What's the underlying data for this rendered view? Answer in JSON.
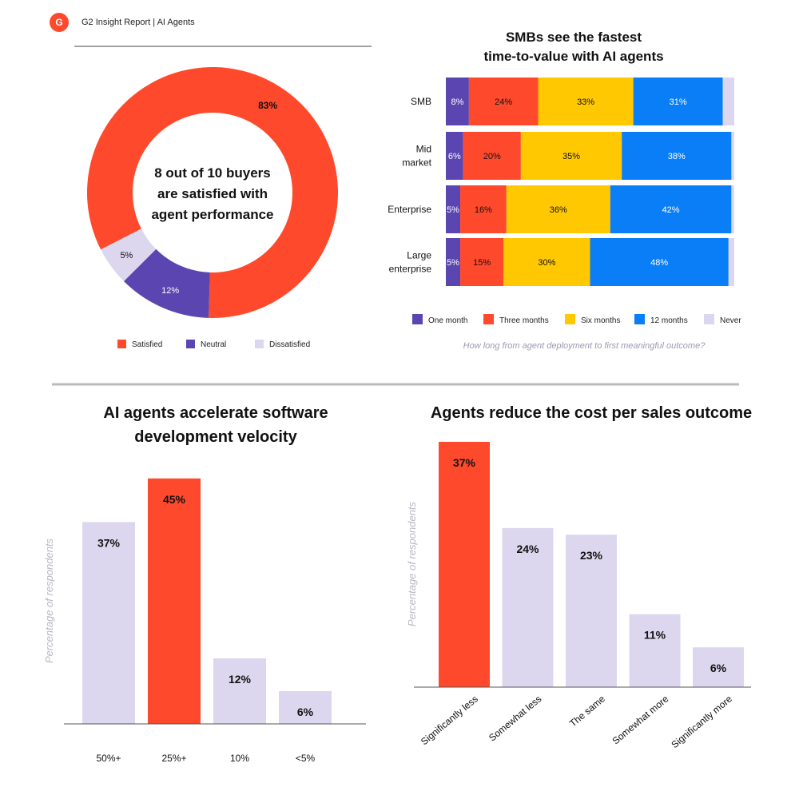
{
  "header": {
    "logo_text": "G",
    "report_title": "G2 Insight Report | AI Agents"
  },
  "colors": {
    "satisfied": "#ff492c",
    "neutral": "#5b45b0",
    "dissatisfied": "#dcd7ee",
    "one_month": "#5b45b0",
    "three_months": "#ff492c",
    "six_months": "#ffc800",
    "twelve_months": "#0a7ef7",
    "never": "#dcd7ee",
    "bar_default": "#dcd7ee",
    "bar_highlight": "#ff492c"
  },
  "chart_data": [
    {
      "type": "pie",
      "subtype": "donut",
      "center_text": [
        "8 out of 10 buyers",
        "are satisfied with",
        "agent performance"
      ],
      "labels": [
        "Satisfied",
        "Neutral",
        "Dissatisfied"
      ],
      "values": [
        83,
        12,
        5
      ],
      "value_labels": [
        "83%",
        "12%",
        "5%"
      ]
    },
    {
      "type": "bar",
      "orientation": "horizontal",
      "stacked": true,
      "title_lines": [
        "SMBs see the fastest",
        "time-to-value with AI agents"
      ],
      "categories": [
        [
          "SMB"
        ],
        [
          "Mid",
          "market"
        ],
        [
          "Enterprise"
        ],
        [
          "Large",
          "enterprise"
        ]
      ],
      "series": [
        {
          "name": "One month",
          "values": [
            8,
            6,
            5,
            5
          ]
        },
        {
          "name": "Three months",
          "values": [
            24,
            20,
            16,
            15
          ]
        },
        {
          "name": "Six months",
          "values": [
            33,
            35,
            36,
            30
          ]
        },
        {
          "name": "12 months",
          "values": [
            31,
            38,
            42,
            48
          ]
        },
        {
          "name": "Never",
          "values": [
            4,
            1,
            1,
            2
          ]
        }
      ],
      "caption": "How long from agent deployment to first meaningful outcome?"
    },
    {
      "type": "bar",
      "title_lines": [
        "AI agents accelerate software",
        "development velocity"
      ],
      "ylabel": "Percentage of respondents",
      "categories": [
        "50%+",
        "25%+",
        "10%",
        "<5%"
      ],
      "values": [
        37,
        45,
        12,
        6
      ],
      "value_labels": [
        "37%",
        "45%",
        "12%",
        "6%"
      ],
      "highlight_index": 1,
      "ylim": [
        0,
        52
      ]
    },
    {
      "type": "bar",
      "title_lines": [
        "Agents reduce the cost per sales outcome"
      ],
      "ylabel": "Percentage of respondents",
      "categories": [
        "Significantly less",
        "Somewhat less",
        "The same",
        "Somewhat more",
        "Significantly more"
      ],
      "values": [
        37,
        24,
        23,
        11,
        6
      ],
      "value_labels": [
        "37%",
        "24%",
        "23%",
        "11%",
        "6%"
      ],
      "highlight_index": 0,
      "ylim": [
        0,
        37
      ]
    }
  ]
}
